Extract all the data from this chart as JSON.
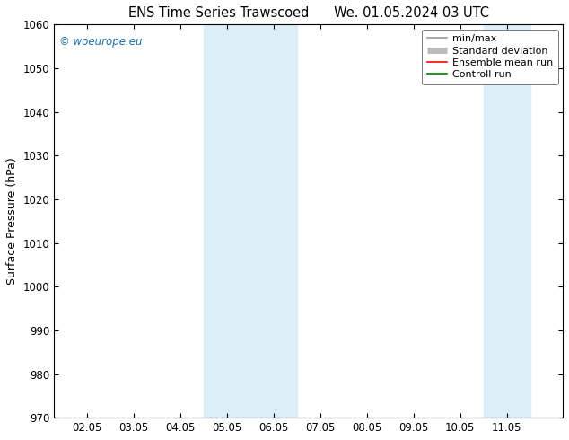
{
  "title_left": "ENS Time Series Trawscoed",
  "title_right": "We. 01.05.2024 03 UTC",
  "ylabel": "Surface Pressure (hPa)",
  "ylim": [
    970,
    1060
  ],
  "yticks": [
    970,
    980,
    990,
    1000,
    1010,
    1020,
    1030,
    1040,
    1050,
    1060
  ],
  "xtick_labels": [
    "02.05",
    "03.05",
    "04.05",
    "05.05",
    "06.05",
    "07.05",
    "08.05",
    "09.05",
    "10.05",
    "11.05"
  ],
  "xtick_positions": [
    1,
    2,
    3,
    4,
    5,
    6,
    7,
    8,
    9,
    10
  ],
  "xlim": [
    0.3,
    11.2
  ],
  "shade_bands": [
    {
      "xmin": 3.5,
      "xmax": 4.5,
      "color": "#deeef8"
    },
    {
      "xmin": 4.5,
      "xmax": 5.5,
      "color": "#deeef8"
    },
    {
      "xmin": 9.5,
      "xmax": 10.5,
      "color": "#deeef8"
    }
  ],
  "legend_entries": [
    {
      "label": "min/max",
      "color": "#999999",
      "lw": 1.2,
      "style": "line"
    },
    {
      "label": "Standard deviation",
      "color": "#bbbbbb",
      "lw": 5,
      "style": "line"
    },
    {
      "label": "Ensemble mean run",
      "color": "#ff0000",
      "lw": 1.2,
      "style": "line"
    },
    {
      "label": "Controll run",
      "color": "#008000",
      "lw": 1.2,
      "style": "line"
    }
  ],
  "watermark": "© woeurope.eu",
  "watermark_color": "#1a6fa8",
  "background_color": "#ffffff",
  "plot_bg_color": "#ffffff",
  "title_fontsize": 10.5,
  "axis_label_fontsize": 9,
  "tick_fontsize": 8.5,
  "legend_fontsize": 8,
  "figsize": [
    6.34,
    4.9
  ],
  "dpi": 100
}
